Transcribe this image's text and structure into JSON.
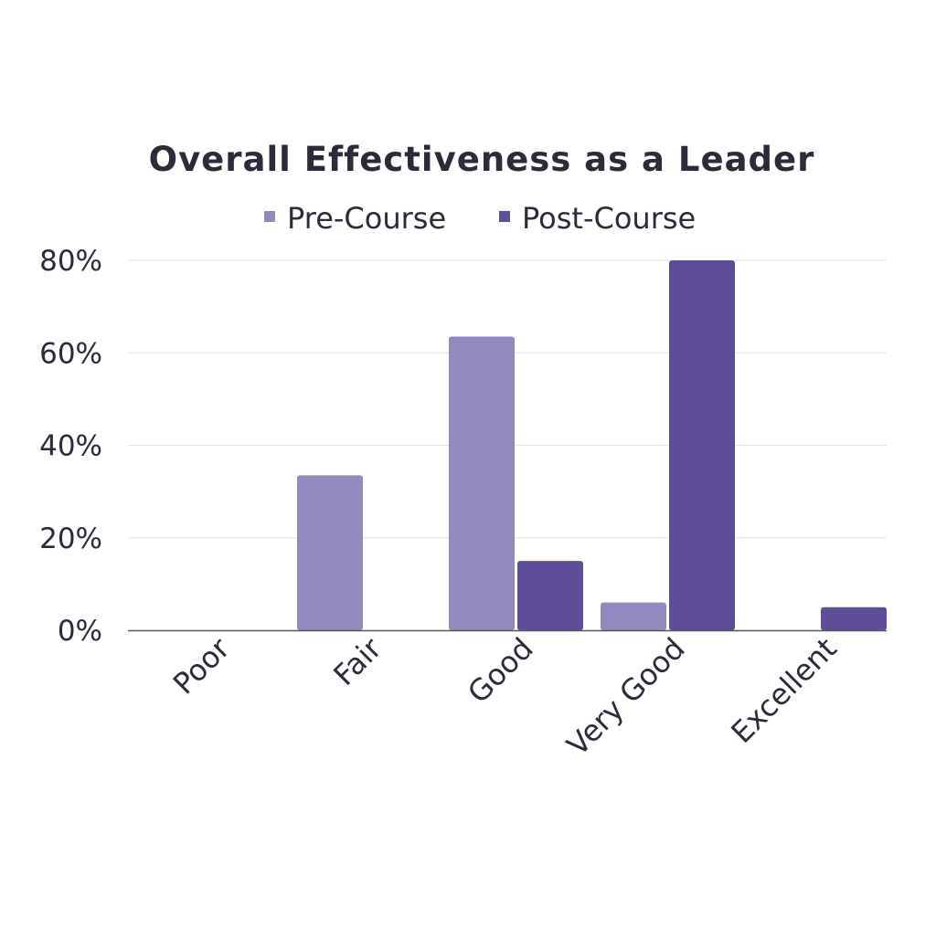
{
  "chart_data": {
    "type": "bar",
    "title": "Overall Effectiveness as a Leader",
    "xlabel": "",
    "ylabel": "",
    "categories": [
      "Poor",
      "Fair",
      "Good",
      "Very Good",
      "Excellent"
    ],
    "series": [
      {
        "name": "Pre-Course",
        "color": "#9489be",
        "values": [
          0,
          33.5,
          63.5,
          6,
          0
        ]
      },
      {
        "name": "Post-Course",
        "color": "#5e4e99",
        "values": [
          0,
          0,
          15,
          80,
          5
        ]
      }
    ],
    "y_ticks": [
      0,
      20,
      40,
      60,
      80
    ],
    "y_tick_format": "percent",
    "ylim": [
      0,
      80
    ],
    "grid": true,
    "legend_position": "top-center",
    "colors": {
      "text": "#2b2b3a",
      "gridline": "#e3e3e3",
      "axis": "#555555"
    }
  }
}
